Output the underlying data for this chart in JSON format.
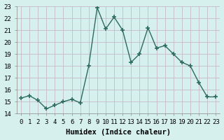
{
  "x": [
    0,
    1,
    2,
    3,
    4,
    5,
    6,
    7,
    8,
    9,
    10,
    11,
    12,
    13,
    14,
    15,
    16,
    17,
    18,
    19,
    20,
    21,
    22,
    23
  ],
  "y": [
    15.3,
    15.5,
    15.1,
    14.4,
    14.7,
    15.0,
    15.2,
    14.9,
    18.0,
    22.9,
    21.1,
    22.1,
    21.0,
    18.3,
    19.0,
    21.2,
    19.5,
    19.7,
    19.0,
    18.3,
    18.0,
    16.6,
    15.4,
    15.4
  ],
  "line_color": "#2d6b5e",
  "marker": "+",
  "marker_size": 4,
  "marker_lw": 1.2,
  "bg_color": "#d6f0ee",
  "grid_color": "#c8b8c8",
  "xlabel": "Humidex (Indice chaleur)",
  "xlim": [
    -0.5,
    23.5
  ],
  "ylim": [
    14,
    23
  ],
  "yticks": [
    14,
    15,
    16,
    17,
    18,
    19,
    20,
    21,
    22,
    23
  ],
  "xtick_labels": [
    "0",
    "1",
    "2",
    "3",
    "4",
    "5",
    "6",
    "7",
    "8",
    "9",
    "10",
    "11",
    "12",
    "13",
    "14",
    "15",
    "16",
    "17",
    "18",
    "19",
    "20",
    "21",
    "22",
    "23"
  ],
  "xlabel_fontsize": 7.5,
  "tick_fontsize": 6.5,
  "line_width": 1.0
}
